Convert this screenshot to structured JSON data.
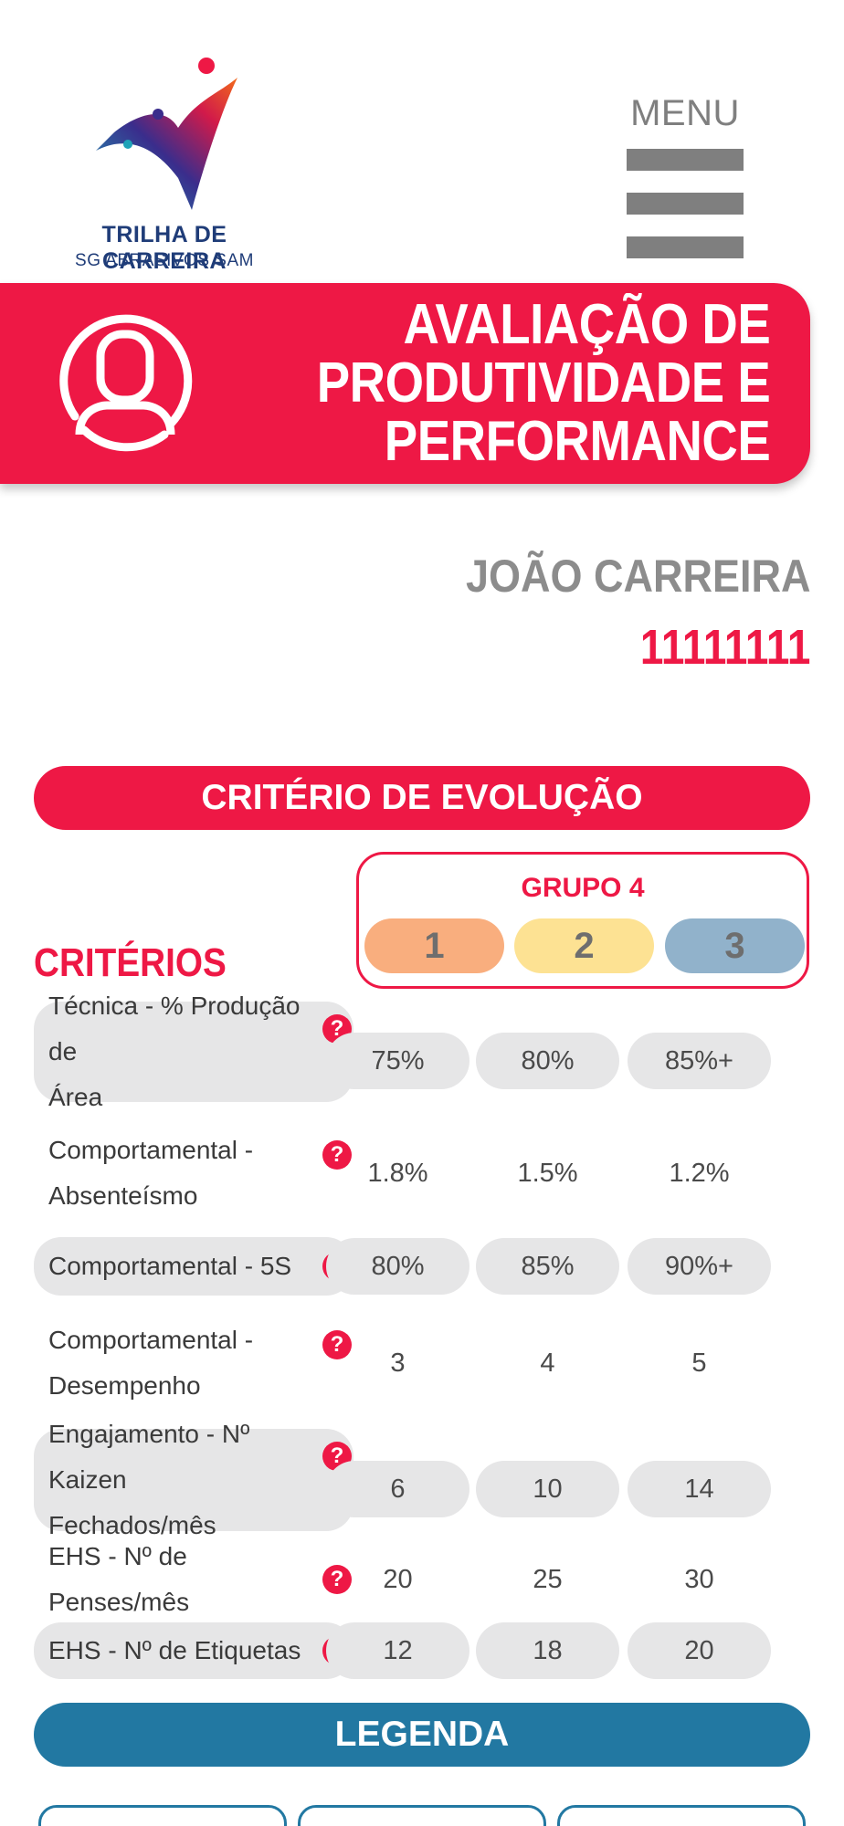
{
  "logo": {
    "title": "TRILHA DE CARREIRA",
    "subtitle": "SG ABRASIVOS SAM"
  },
  "menu": {
    "label": "MENU"
  },
  "banner": {
    "title_lines": [
      "AVALIAÇÃO DE",
      "PRODUTIVIDADE E",
      "PERFORMANCE"
    ]
  },
  "employee": {
    "name": "JOÃO CARREIRA",
    "id": "11111111"
  },
  "section": {
    "criterio_label": "CRITÉRIO DE EVOLUÇÃO",
    "legenda_label": "LEGENDA"
  },
  "group": {
    "title": "GRUPO 4",
    "levels": [
      {
        "label": "1",
        "color": "#f9ae7e"
      },
      {
        "label": "2",
        "color": "#fde293"
      },
      {
        "label": "3",
        "color": "#91b2cb"
      }
    ]
  },
  "criterios_title": "CRITÉRIOS",
  "rows": [
    {
      "label_lines": [
        "Técnica - % Produção de",
        "Área"
      ],
      "values": [
        "75%",
        "80%",
        "85%+"
      ],
      "shaded": true
    },
    {
      "label_lines": [
        "Comportamental -",
        "Absenteísmo"
      ],
      "values": [
        "1.8%",
        "1.5%",
        "1.2%"
      ],
      "shaded": false
    },
    {
      "label_lines": [
        "Comportamental - 5S"
      ],
      "values": [
        "80%",
        "85%",
        "90%+"
      ],
      "shaded": true
    },
    {
      "label_lines": [
        "Comportamental -",
        "Desempenho"
      ],
      "values": [
        "3",
        "4",
        "5"
      ],
      "shaded": false
    },
    {
      "label_lines": [
        "Engajamento - Nº Kaizen",
        "Fechados/mês"
      ],
      "values": [
        "6",
        "10",
        "14"
      ],
      "shaded": true
    },
    {
      "label_lines": [
        "EHS - Nº de Penses/mês"
      ],
      "values": [
        "20",
        "25",
        "30"
      ],
      "shaded": false
    },
    {
      "label_lines": [
        "EHS - Nº de Etiquetas"
      ],
      "values": [
        "12",
        "18",
        "20"
      ],
      "shaded": true
    }
  ],
  "icons": {
    "help": "question-circle-icon",
    "menu": "hamburger-icon",
    "user": "user-circle-icon"
  },
  "colors": {
    "accent": "#ee1845",
    "legend": "#2278a2",
    "menu_gray": "#7f7f7f"
  }
}
